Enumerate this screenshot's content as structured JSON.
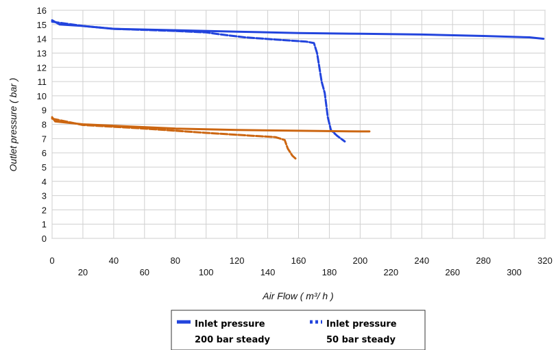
{
  "chart_data": {
    "type": "line",
    "ylabel": "Outlet pressure ( bar )",
    "xlabel": "Air Flow ( m³/ h )",
    "xlim": [
      0,
      320
    ],
    "ylim": [
      0,
      16
    ],
    "grid": true,
    "x_ticks_top": [
      "0",
      "40",
      "80",
      "120",
      "160",
      "200",
      "240",
      "280",
      "320"
    ],
    "x_ticks_bottom": [
      "20",
      "60",
      "100",
      "140",
      "180",
      "220",
      "260",
      "300"
    ],
    "y_ticks": [
      "0",
      "1",
      "2",
      "3",
      "4",
      "5",
      "6",
      "7",
      "8",
      "9",
      "10",
      "11",
      "12",
      "13",
      "14",
      "15",
      "16"
    ],
    "legend": {
      "placement": "bottom-center",
      "entries": [
        {
          "line1": "Inlet pressure",
          "line2": "200 bar steady",
          "style": "solid"
        },
        {
          "line1": "Inlet pressure",
          "line2": "50 bar steady",
          "style": "dotted"
        }
      ]
    },
    "series": [
      {
        "color": "#2244dd",
        "style": "solid",
        "points": [
          [
            0,
            15.3
          ],
          [
            5,
            15.0
          ],
          [
            20,
            14.9
          ],
          [
            40,
            14.7
          ],
          [
            80,
            14.6
          ],
          [
            120,
            14.5
          ],
          [
            160,
            14.4
          ],
          [
            200,
            14.35
          ],
          [
            240,
            14.3
          ],
          [
            280,
            14.2
          ],
          [
            310,
            14.1
          ],
          [
            319,
            14.0
          ]
        ]
      },
      {
        "color": "#2244dd",
        "style": "dotted",
        "points": [
          [
            0,
            15.2
          ],
          [
            20,
            14.9
          ],
          [
            40,
            14.7
          ],
          [
            80,
            14.55
          ],
          [
            100,
            14.45
          ],
          [
            110,
            14.3
          ],
          [
            125,
            14.1
          ],
          [
            145,
            13.95
          ],
          [
            165,
            13.8
          ],
          [
            170,
            13.7
          ],
          [
            172,
            13.0
          ],
          [
            175,
            11.0
          ],
          [
            177,
            10.2
          ],
          [
            179,
            8.5
          ],
          [
            181,
            7.6
          ],
          [
            185,
            7.2
          ],
          [
            190,
            6.8
          ]
        ]
      },
      {
        "color": "#cc6611",
        "style": "solid",
        "points": [
          [
            0,
            8.5
          ],
          [
            2,
            8.2
          ],
          [
            20,
            8.0
          ],
          [
            40,
            7.9
          ],
          [
            80,
            7.7
          ],
          [
            120,
            7.6
          ],
          [
            160,
            7.55
          ],
          [
            200,
            7.5
          ],
          [
            206,
            7.5
          ]
        ]
      },
      {
        "color": "#cc6611",
        "style": "dotted",
        "points": [
          [
            0,
            8.4
          ],
          [
            20,
            7.95
          ],
          [
            60,
            7.7
          ],
          [
            100,
            7.4
          ],
          [
            130,
            7.2
          ],
          [
            145,
            7.1
          ],
          [
            151,
            6.9
          ],
          [
            153,
            6.3
          ],
          [
            156,
            5.8
          ],
          [
            158,
            5.6
          ]
        ]
      }
    ]
  }
}
